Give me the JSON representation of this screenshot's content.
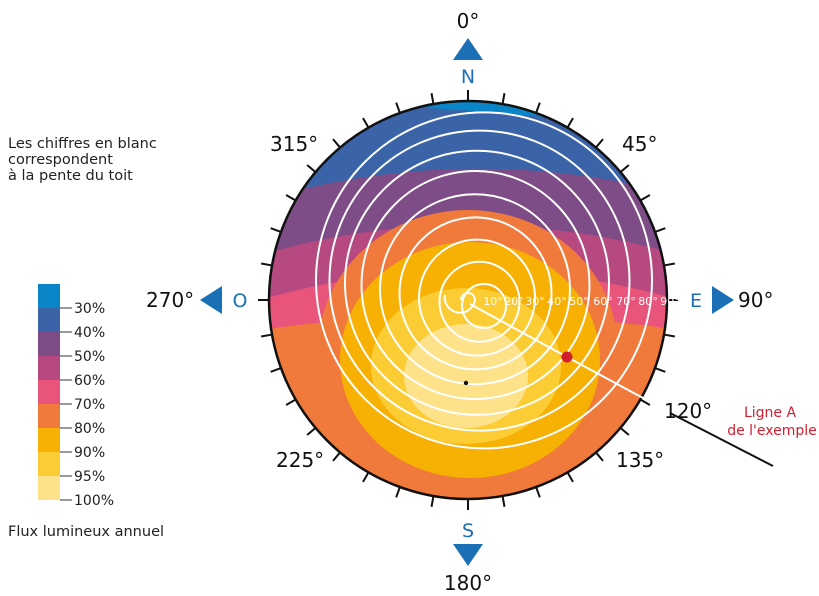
{
  "note": {
    "line1": "Les chiffres en blanc",
    "line2": "correspondent",
    "line3": "à la pente du toit"
  },
  "legend": {
    "title": "Flux lumineux annuel",
    "items": [
      {
        "label": "30%",
        "color": "#0a86c8"
      },
      {
        "label": "40%",
        "color": "#3a63a8"
      },
      {
        "label": "50%",
        "color": "#7e4c86"
      },
      {
        "label": "60%",
        "color": "#b64a80"
      },
      {
        "label": "70%",
        "color": "#e9557a"
      },
      {
        "label": "80%",
        "color": "#f07a3c"
      },
      {
        "label": "90%",
        "color": "#f7b004"
      },
      {
        "label": "95%",
        "color": "#fccc34"
      },
      {
        "label": "100%",
        "color": "#fde28a"
      }
    ]
  },
  "compass": {
    "north_letter": "N",
    "south_letter": "S",
    "east_letter": "E",
    "west_letter": "O",
    "arrow_color": "#1a6fb5",
    "azimuths": {
      "a0": "0°",
      "a45": "45°",
      "a90": "90°",
      "a120": "120°",
      "a135": "135°",
      "a180": "180°",
      "a225": "225°",
      "a270": "270°",
      "a315": "315°"
    }
  },
  "slopes": [
    "10°",
    "20°",
    "30°",
    "40°",
    "50°",
    "60°",
    "70°",
    "80°",
    "90°"
  ],
  "annotation": {
    "line1": "Ligne A",
    "line2": "de l'exemple",
    "color": "#d11d2e"
  }
}
